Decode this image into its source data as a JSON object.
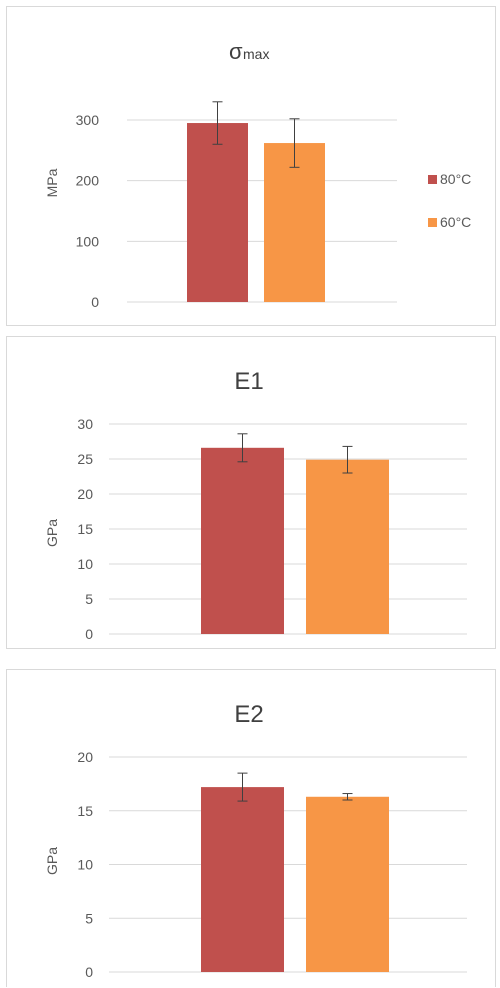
{
  "colors": {
    "series_80": "#c0504d",
    "series_60": "#f79646"
  },
  "chart_data": [
    {
      "type": "bar",
      "title_main": "σ",
      "title_sub": "max",
      "ylabel": "MPa",
      "ylim": [
        0,
        300
      ],
      "yticks": [
        "0",
        "100",
        "200",
        "300"
      ],
      "tick_values": [
        0,
        100,
        200,
        300
      ],
      "legend_position": "right",
      "series": [
        {
          "name": "80°C",
          "value": 295,
          "err": 35,
          "color": "#c0504d"
        },
        {
          "name": "60°C",
          "value": 262,
          "err": 40,
          "color": "#f79646"
        }
      ]
    },
    {
      "type": "bar",
      "title": "E1",
      "ylabel": "GPa",
      "ylim": [
        0,
        30
      ],
      "yticks": [
        "0",
        "5",
        "10",
        "15",
        "20",
        "25",
        "30"
      ],
      "tick_values": [
        0,
        5,
        10,
        15,
        20,
        25,
        30
      ],
      "series": [
        {
          "value": 26.6,
          "err": 2.0,
          "color": "#c0504d"
        },
        {
          "value": 24.9,
          "err": 1.9,
          "color": "#f79646"
        }
      ]
    },
    {
      "type": "bar",
      "title": "E2",
      "ylabel": "GPa",
      "ylim": [
        0,
        20
      ],
      "yticks": [
        "0",
        "5",
        "10",
        "15",
        "20"
      ],
      "tick_values": [
        0,
        5,
        10,
        15,
        20
      ],
      "series": [
        {
          "value": 17.2,
          "err": 1.3,
          "color": "#c0504d"
        },
        {
          "value": 16.3,
          "err": 0.3,
          "color": "#f79646"
        }
      ]
    }
  ],
  "legend": [
    {
      "label": "80°C",
      "color": "#c0504d"
    },
    {
      "label": "60°C",
      "color": "#f79646"
    }
  ]
}
